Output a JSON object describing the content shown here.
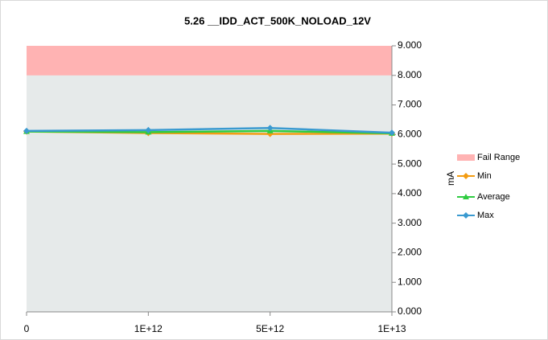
{
  "chart_data": {
    "type": "line",
    "title": "5.26 __IDD_ACT_500K_NOLOAD_12V",
    "categories": [
      "0",
      "1E+12",
      "5E+12",
      "1E+13"
    ],
    "y_label": "mA",
    "ylim": [
      0,
      9
    ],
    "yticks": [
      {
        "value": 0,
        "label": "0.000"
      },
      {
        "value": 1,
        "label": "1.000"
      },
      {
        "value": 2,
        "label": "2.000"
      },
      {
        "value": 3,
        "label": "3.000"
      },
      {
        "value": 4,
        "label": "4.000"
      },
      {
        "value": 5,
        "label": "5.000"
      },
      {
        "value": 6,
        "label": "6.000"
      },
      {
        "value": 7,
        "label": "7.000"
      },
      {
        "value": 8,
        "label": "8.000"
      },
      {
        "value": 9,
        "label": "9.000"
      }
    ],
    "fail_range": {
      "name": "Fail Range",
      "color": "#ffb3b3",
      "from": 8,
      "to": 9
    },
    "series": [
      {
        "name": "Min",
        "color": "#f39c12",
        "marker": "diamond",
        "values": [
          6.1,
          6.05,
          6.02,
          6.03
        ]
      },
      {
        "name": "Average",
        "color": "#2ecc40",
        "marker": "triangle",
        "values": [
          6.1,
          6.08,
          6.12,
          6.04
        ]
      },
      {
        "name": "Max",
        "color": "#3a9ad0",
        "marker": "diamond",
        "values": [
          6.12,
          6.15,
          6.22,
          6.06
        ]
      }
    ]
  }
}
